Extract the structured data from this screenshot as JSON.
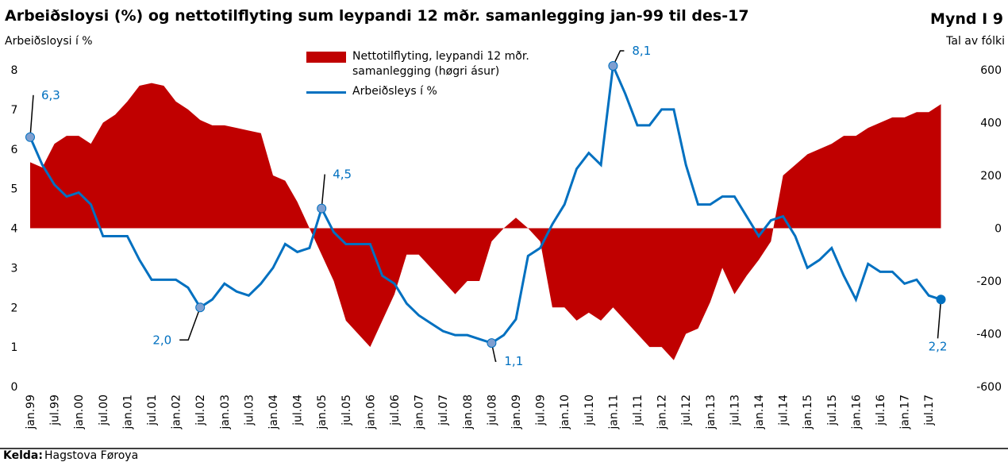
{
  "chart_data": {
    "type": "bar-line",
    "title": "Arbeiðsloysi (%) og nettotilflyting sum leypandi 12 mðr. samanlegging jan-99 til des-17",
    "figure_label": "Mynd I 9",
    "ylabel": "Arbeiðsloysi í %",
    "y2label": "Tal av fólki",
    "source_label": "Kelda:",
    "source": "Hagstova Føroya",
    "categories": [
      "jan.99",
      null,
      "jul.99",
      null,
      "jan.00",
      null,
      "jul.00",
      null,
      "jan.01",
      null,
      "jul.01",
      null,
      "jan.02",
      null,
      "jul.02",
      null,
      "jan.03",
      null,
      "jul.03",
      null,
      "jan.04",
      null,
      "jul.04",
      null,
      "jan.05",
      null,
      "jul.05",
      null,
      "jan.06",
      null,
      "jul.06",
      null,
      "jan.07",
      null,
      "jul.07",
      null,
      "jan.08",
      null,
      "jul.08",
      null,
      "jan.09",
      null,
      "jul.09",
      null,
      "jan.10",
      null,
      "jul.10",
      null,
      "jan.11",
      null,
      "jul.11",
      null,
      "jan.12",
      null,
      "jul.12",
      null,
      "jan.13",
      null,
      "jul.13",
      null,
      "jan.14",
      null,
      "jul.14",
      null,
      "jan.15",
      null,
      "jul.15",
      null,
      "jan.16",
      null,
      "jul.16",
      null,
      "jan.17",
      null,
      "jul.17",
      null
    ],
    "series": [
      {
        "name": "Nettotilflyting, leypandi 12 mðr. samanlegging (høgri ásur)",
        "color": "#c00000",
        "axis": "y2",
        "kind": "area",
        "values": [
          250,
          230,
          320,
          350,
          350,
          320,
          400,
          430,
          480,
          540,
          550,
          540,
          480,
          450,
          410,
          390,
          390,
          380,
          370,
          360,
          200,
          180,
          100,
          0,
          -100,
          -200,
          -350,
          -400,
          -450,
          -350,
          -250,
          -100,
          -100,
          -150,
          -200,
          -250,
          -200,
          -200,
          -50,
          0,
          40,
          0,
          -50,
          -300,
          -300,
          -350,
          -320,
          -350,
          -300,
          -350,
          -400,
          -450,
          -450,
          -500,
          -400,
          -380,
          -280,
          -150,
          -250,
          -180,
          -120,
          -50,
          200,
          240,
          280,
          300,
          320,
          350,
          350,
          380,
          400,
          420,
          420,
          440,
          440,
          470
        ]
      },
      {
        "name": "Arbeiðsleys í %",
        "color": "#0070c0",
        "kind": "line",
        "values": [
          6.3,
          5.6,
          5.1,
          4.8,
          4.9,
          4.6,
          3.8,
          3.8,
          3.8,
          3.2,
          2.7,
          2.7,
          2.7,
          2.5,
          2.0,
          2.2,
          2.6,
          2.4,
          2.3,
          2.6,
          3.0,
          3.6,
          3.4,
          3.5,
          4.5,
          3.9,
          3.6,
          3.6,
          3.6,
          2.8,
          2.6,
          2.1,
          1.8,
          1.6,
          1.4,
          1.3,
          1.3,
          1.2,
          1.1,
          1.3,
          1.7,
          3.3,
          3.5,
          4.1,
          4.6,
          5.5,
          5.9,
          5.6,
          8.1,
          7.4,
          6.6,
          6.6,
          7.0,
          7.0,
          5.6,
          4.6,
          4.6,
          4.8,
          4.8,
          4.3,
          3.8,
          4.2,
          4.3,
          3.8,
          3.0,
          3.2,
          3.5,
          2.8,
          2.2,
          3.1,
          2.9,
          2.9,
          2.6,
          2.7,
          2.3,
          2.2
        ],
        "value_labels": [
          "6,3",
          null,
          null,
          null,
          null,
          null,
          null,
          null,
          null,
          null,
          null,
          null,
          null,
          null,
          "2,0",
          null,
          null,
          null,
          null,
          null,
          null,
          null,
          null,
          null,
          "4,5",
          null,
          null,
          null,
          null,
          null,
          null,
          null,
          null,
          null,
          null,
          null,
          null,
          null,
          "1,1",
          null,
          null,
          null,
          null,
          null,
          null,
          null,
          null,
          null,
          "8,1",
          null,
          null,
          null,
          null,
          null,
          null,
          null,
          null,
          null,
          null,
          null,
          null,
          null,
          null,
          null,
          null,
          null,
          null,
          null,
          null,
          null,
          null,
          null,
          null,
          null,
          null,
          "2,2"
        ]
      }
    ],
    "ylim": [
      0,
      8
    ],
    "yticks": [
      0,
      1,
      2,
      3,
      4,
      5,
      6,
      7,
      8
    ],
    "y2lim": [
      -600,
      600
    ],
    "y2ticks": [
      -600,
      -400,
      -200,
      0,
      200,
      400,
      600
    ]
  }
}
